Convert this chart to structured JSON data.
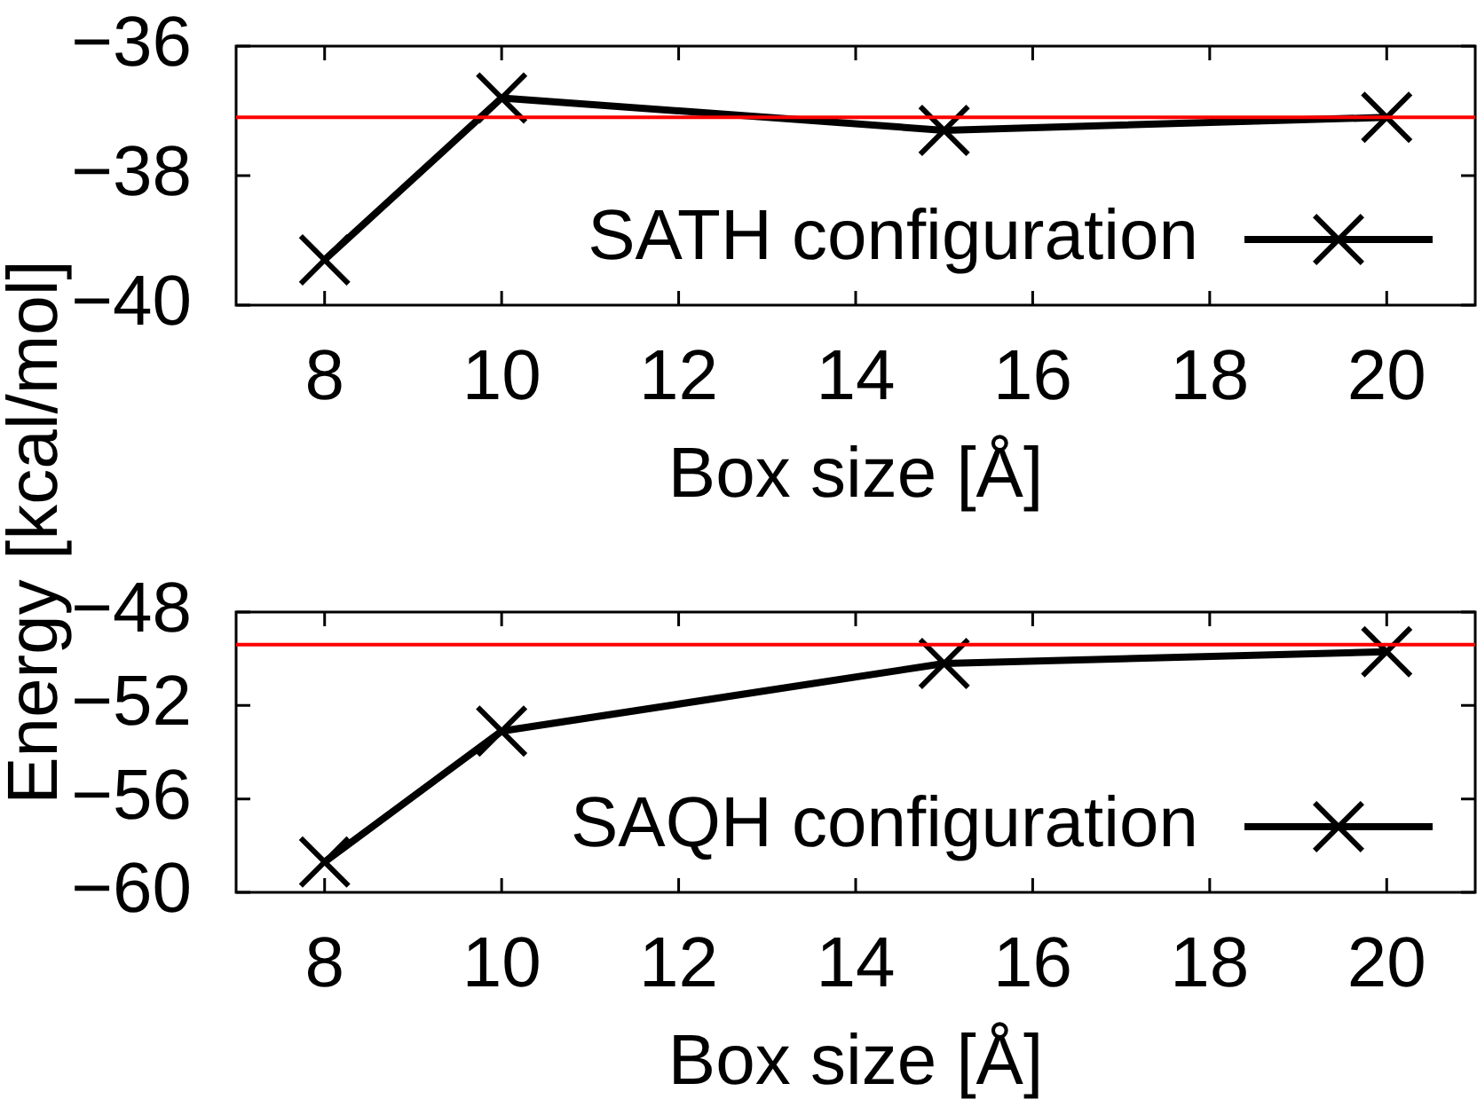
{
  "chart_data": [
    {
      "type": "line",
      "ylabel": "Energy [kcal/mol]",
      "xlabel": "Box size [Å]",
      "x": [
        8,
        10,
        15,
        20
      ],
      "series": [
        {
          "name": "SATH configuration",
          "color": "#000000",
          "values": [
            -39.3,
            -36.8,
            -37.3,
            -37.1
          ]
        }
      ],
      "xlim": [
        7,
        21
      ],
      "xticks": [
        8,
        10,
        12,
        14,
        16,
        18,
        20
      ],
      "ylim": [
        -40,
        -36
      ],
      "yticks": [
        {
          "value": -40,
          "label": "−40"
        },
        {
          "value": -38,
          "label": "−38"
        },
        {
          "value": -36,
          "label": "−36"
        }
      ],
      "ref_lines": [
        {
          "axis": "y",
          "value": -37.1,
          "color": "#ff0000"
        }
      ],
      "legend": "bottom right",
      "marker": "cross",
      "line_style": "solid"
    },
    {
      "type": "line",
      "xlabel": "Box size [Å]",
      "x": [
        8,
        10,
        15,
        20
      ],
      "series": [
        {
          "name": "SAQH configuration",
          "color": "#000000",
          "values": [
            -58.7,
            -53.1,
            -50.2,
            -49.7
          ]
        }
      ],
      "xlim": [
        7,
        21
      ],
      "xticks": [
        8,
        10,
        12,
        14,
        16,
        18,
        20
      ],
      "ylim": [
        -60,
        -48
      ],
      "yticks": [
        {
          "value": -60,
          "label": "−60"
        },
        {
          "value": -56,
          "label": "−56"
        },
        {
          "value": -52,
          "label": "−52"
        },
        {
          "value": -48,
          "label": "−48"
        }
      ],
      "ref_lines": [
        {
          "axis": "y",
          "value": -49.4,
          "color": "#ff0000"
        }
      ],
      "legend": "bottom right",
      "marker": "cross",
      "line_style": "solid"
    }
  ]
}
